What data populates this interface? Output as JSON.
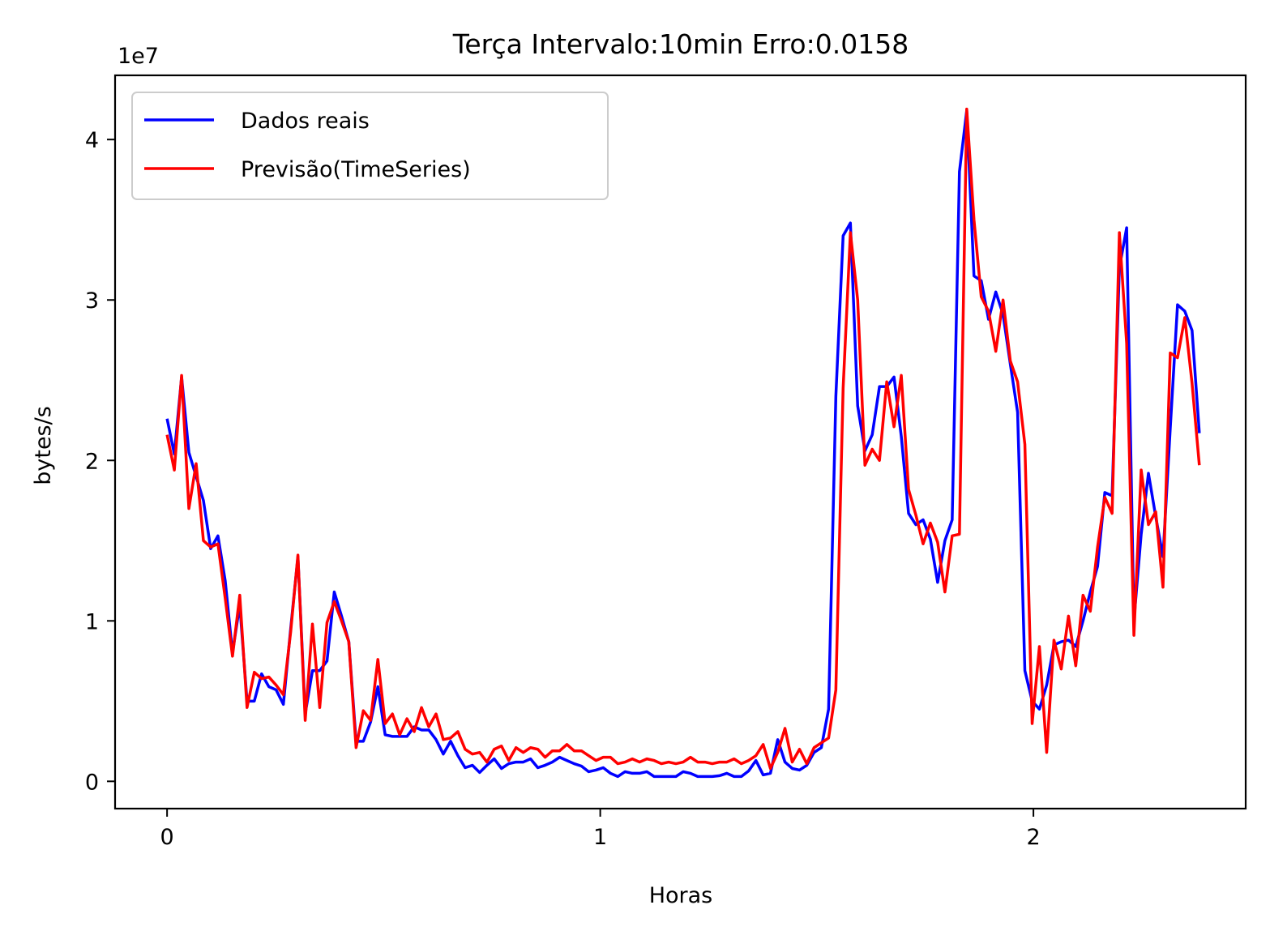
{
  "chart_data": {
    "type": "line",
    "title": "Terça Intervalo:10min Erro:0.0158",
    "xlabel": "Horas",
    "ylabel": "bytes/s",
    "y_offset_label": "1e7",
    "y_scale": 10000000,
    "xlim": [
      -0.12,
      2.49
    ],
    "ylim": [
      -1700000,
      44000000
    ],
    "x_ticks": [
      0,
      1,
      2
    ],
    "x_tick_labels": [
      "0",
      "1",
      "2"
    ],
    "y_ticks": [
      0,
      10000000,
      20000000,
      30000000,
      40000000
    ],
    "y_tick_labels": [
      "0",
      "1",
      "2",
      "3",
      "4"
    ],
    "grid": false,
    "legend_position": "top-left",
    "series": [
      {
        "name": "Dados reais",
        "color": "#0000ff",
        "values": [
          22.6,
          20.4,
          25.2,
          20.5,
          19.0,
          17.5,
          14.5,
          15.3,
          12.5,
          8.0,
          11.0,
          5.0,
          5.0,
          6.7,
          5.9,
          5.7,
          4.8,
          9.5,
          14.0,
          4.2,
          6.9,
          6.9,
          7.5,
          11.8,
          10.3,
          8.7,
          2.5,
          2.5,
          3.7,
          5.9,
          2.9,
          2.8,
          2.8,
          2.8,
          3.4,
          3.2,
          3.2,
          2.6,
          1.7,
          2.5,
          1.6,
          0.85,
          1.0,
          0.55,
          1.0,
          1.4,
          0.8,
          1.1,
          1.2,
          1.2,
          1.4,
          0.85,
          1.0,
          1.2,
          1.5,
          1.3,
          1.1,
          0.95,
          0.6,
          0.7,
          0.85,
          0.5,
          0.3,
          0.6,
          0.5,
          0.5,
          0.6,
          0.3,
          0.3,
          0.3,
          0.3,
          0.6,
          0.5,
          0.3,
          0.3,
          0.3,
          0.35,
          0.5,
          0.3,
          0.3,
          0.65,
          1.3,
          0.4,
          0.5,
          2.6,
          1.2,
          0.8,
          0.7,
          1.0,
          1.8,
          2.1,
          4.5,
          24.0,
          34.0,
          34.8,
          23.4,
          20.6,
          21.6,
          24.6,
          24.6,
          25.2,
          21.5,
          16.7,
          16.0,
          16.3,
          15.1,
          12.4,
          15.0,
          16.3,
          38.0,
          41.8,
          31.5,
          31.2,
          28.8,
          30.5,
          29.1,
          26.0,
          23.0,
          6.9,
          5.0,
          4.5,
          6.0,
          8.5,
          8.7,
          8.8,
          8.4,
          10.0,
          11.8,
          13.4,
          18.0,
          17.8,
          32.0,
          34.5,
          10.0,
          15.4,
          19.2,
          16.5,
          14.0,
          22.0,
          29.7,
          29.3,
          28.1,
          21.7
        ]
      },
      {
        "name": "Previsão(TimeSeries)",
        "color": "#ff0000",
        "values": [
          21.6,
          19.4,
          25.3,
          17.0,
          19.8,
          15.0,
          14.6,
          14.8,
          11.4,
          7.8,
          11.6,
          4.6,
          6.8,
          6.4,
          6.5,
          6.0,
          5.4,
          9.3,
          14.1,
          3.8,
          9.8,
          4.6,
          9.9,
          11.2,
          10.0,
          8.7,
          2.1,
          4.4,
          3.8,
          7.6,
          3.6,
          4.2,
          2.9,
          3.9,
          3.1,
          4.6,
          3.4,
          4.2,
          2.6,
          2.7,
          3.1,
          2.0,
          1.7,
          1.8,
          1.2,
          2.0,
          2.2,
          1.3,
          2.1,
          1.8,
          2.1,
          2.0,
          1.5,
          1.9,
          1.9,
          2.3,
          1.9,
          1.9,
          1.6,
          1.3,
          1.5,
          1.5,
          1.1,
          1.2,
          1.4,
          1.2,
          1.4,
          1.3,
          1.1,
          1.2,
          1.1,
          1.2,
          1.5,
          1.2,
          1.2,
          1.1,
          1.2,
          1.2,
          1.4,
          1.1,
          1.3,
          1.6,
          2.3,
          0.8,
          1.8,
          3.3,
          1.2,
          2.0,
          1.1,
          2.1,
          2.4,
          2.7,
          5.7,
          24.5,
          34.2,
          30.0,
          19.7,
          20.7,
          20.0,
          24.9,
          22.1,
          25.3,
          18.2,
          16.6,
          14.8,
          16.1,
          14.9,
          11.8,
          15.3,
          15.4,
          41.9,
          35.0,
          30.2,
          29.3,
          26.8,
          30.0,
          26.2,
          24.9,
          21.0,
          3.6,
          8.4,
          1.8,
          8.8,
          7.0,
          10.3,
          7.2,
          11.6,
          10.6,
          14.6,
          17.7,
          16.7,
          34.2,
          27.3,
          9.1,
          19.4,
          16.0,
          16.8,
          12.1,
          26.7,
          26.4,
          28.9,
          24.8,
          19.7
        ]
      }
    ]
  }
}
